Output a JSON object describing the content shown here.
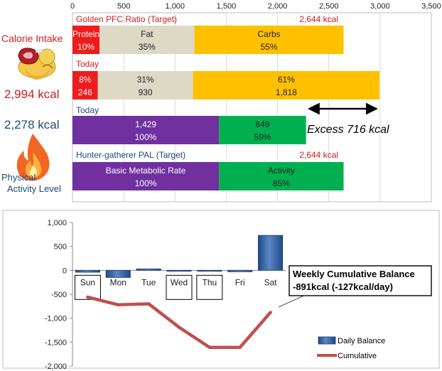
{
  "colors": {
    "protein": "#ee1c1c",
    "fat": "#ddd9c4",
    "carbs": "#ffc000",
    "bmr": "#7030a0",
    "activity": "#00b050",
    "red_text": "#d11c1c",
    "blue_text": "#1f497d",
    "bar_fill": "#2e5fa0",
    "line": "#c0504d"
  },
  "icons": [
    "meat-and-fruit-icon",
    "flame-icon"
  ],
  "top_chart": {
    "type": "bar",
    "orientation": "horizontal-stacked",
    "xlim": [
      0,
      3500
    ],
    "xticks": [
      0,
      500,
      1000,
      1500,
      2000,
      2500,
      3000,
      3500
    ],
    "xtick_labels": [
      "0",
      "500",
      "1,000",
      "1,500",
      "2,000",
      "2,500",
      "3,000",
      "3,500"
    ],
    "left_labels": {
      "intake_title": "Calorie Intake",
      "intake_value": "2,994 kcal",
      "expend_value": "2,278 kcal",
      "activity_title_1": "Physical",
      "activity_title_2": "Activity Level"
    },
    "rows": [
      {
        "header": "Golden PFC Ratio (Target)",
        "total_label": "2,644 kcal",
        "header_color": "red",
        "segments": [
          {
            "color": "protein",
            "value": 264,
            "line1": "Protein",
            "line2": "10%",
            "text_color": "#ffffff"
          },
          {
            "color": "fat",
            "value": 925,
            "line1": "Fat",
            "line2": "35%",
            "text_color": "#222222"
          },
          {
            "color": "carbs",
            "value": 1455,
            "line1": "Carbs",
            "line2": "55%",
            "text_color": "#222222"
          }
        ]
      },
      {
        "header": "Today",
        "total_label": "",
        "header_color": "red",
        "segments": [
          {
            "color": "protein",
            "value": 246,
            "line1": "8%",
            "line2": "246",
            "text_color": "#ffffff"
          },
          {
            "color": "fat",
            "value": 930,
            "line1": "31%",
            "line2": "930",
            "text_color": "#222222"
          },
          {
            "color": "carbs",
            "value": 1818,
            "line1": "61%",
            "line2": "1,818",
            "text_color": "#222222"
          }
        ]
      },
      {
        "header": "Today",
        "total_label": "",
        "header_color": "blue",
        "segments": [
          {
            "color": "bmr",
            "value": 1429,
            "line1": "1,429",
            "line2": "100%",
            "text_color": "#ffffff"
          },
          {
            "color": "activity",
            "value": 849,
            "line1": "849",
            "line2": "59%",
            "text_color": "#222222"
          }
        ]
      },
      {
        "header": "Hunter-gatherer  PAL (Target)",
        "total_label": "2,644 kcal",
        "header_color": "blue",
        "segments": [
          {
            "color": "bmr",
            "value": 1429,
            "line1": "Basic Metabolic Rate",
            "line2": "100%",
            "text_color": "#ffffff"
          },
          {
            "color": "activity",
            "value": 1215,
            "line1": "Activity",
            "line2": "85%",
            "text_color": "#222222"
          }
        ]
      }
    ],
    "excess": {
      "from": 2278,
      "to": 2994,
      "label": "Excess 716 kcal"
    }
  },
  "chart_data": {
    "type": "bar",
    "categories": [
      "Sun",
      "Mon",
      "Tue",
      "Wed",
      "Thu",
      "Fri",
      "Sat"
    ],
    "series": [
      {
        "name": "Daily Balance",
        "kind": "bar",
        "values": [
          -40,
          -150,
          30,
          -20,
          -20,
          -30,
          730
        ]
      },
      {
        "name": "Cumulative",
        "kind": "line",
        "values": [
          -560,
          -720,
          -700,
          -1190,
          -1610,
          -1610,
          -880
        ]
      }
    ],
    "ylim": [
      -2000,
      1000
    ],
    "yticks": [
      1000,
      500,
      0,
      -500,
      -1000,
      -1500,
      -2000
    ],
    "ytick_labels": [
      "1,000",
      "500",
      "0",
      "-500",
      "-1,000",
      "-1,500",
      "-2,000"
    ],
    "legend": "bottom-right",
    "callout": {
      "line1": "Weekly Cumulative Balance",
      "line2": "-891kcal (-127kcal/day)"
    }
  }
}
